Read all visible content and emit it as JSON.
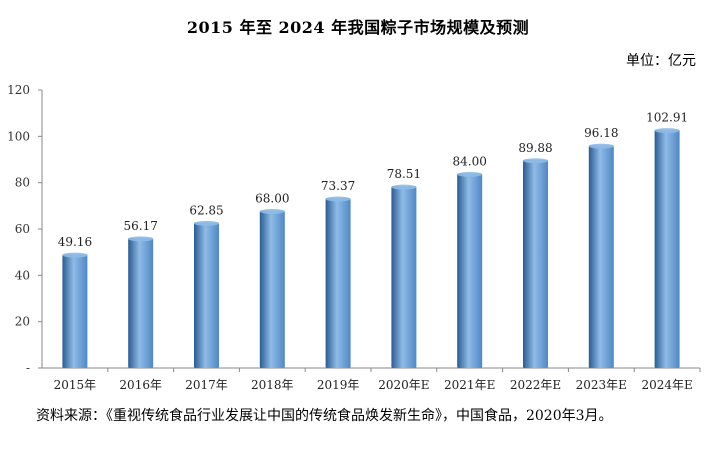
{
  "chart_data": {
    "type": "bar",
    "title": "2015 年至 2024 年我国粽子市场规模及预测",
    "unit_label": "单位：亿元",
    "categories": [
      "2015年",
      "2016年",
      "2017年",
      "2018年",
      "2019年",
      "2020年E",
      "2021年E",
      "2022年E",
      "2023年E",
      "2024年E"
    ],
    "values": [
      49.16,
      56.17,
      62.85,
      68.0,
      73.37,
      78.51,
      84.0,
      89.88,
      96.18,
      102.91
    ],
    "value_labels": [
      "49.16",
      "56.17",
      "62.85",
      "68.00",
      "73.37",
      "78.51",
      "84.00",
      "89.88",
      "96.18",
      "102.91"
    ],
    "ylim": [
      0,
      120
    ],
    "yticks": [
      0,
      20,
      40,
      60,
      80,
      100,
      120
    ],
    "ytick_labels": [
      "-",
      "20",
      "40",
      "60",
      "80",
      "100",
      "120"
    ],
    "grid": false,
    "legend": "none",
    "bar_color": "#4f88c6",
    "bar_highlight": "#8fbbe6",
    "bar_shadow": "#2a5c93"
  },
  "source_note": "资料来源：《重视传统食品行业发展让中国的传统食品焕发新生命》，中国食品，2020年3月。"
}
